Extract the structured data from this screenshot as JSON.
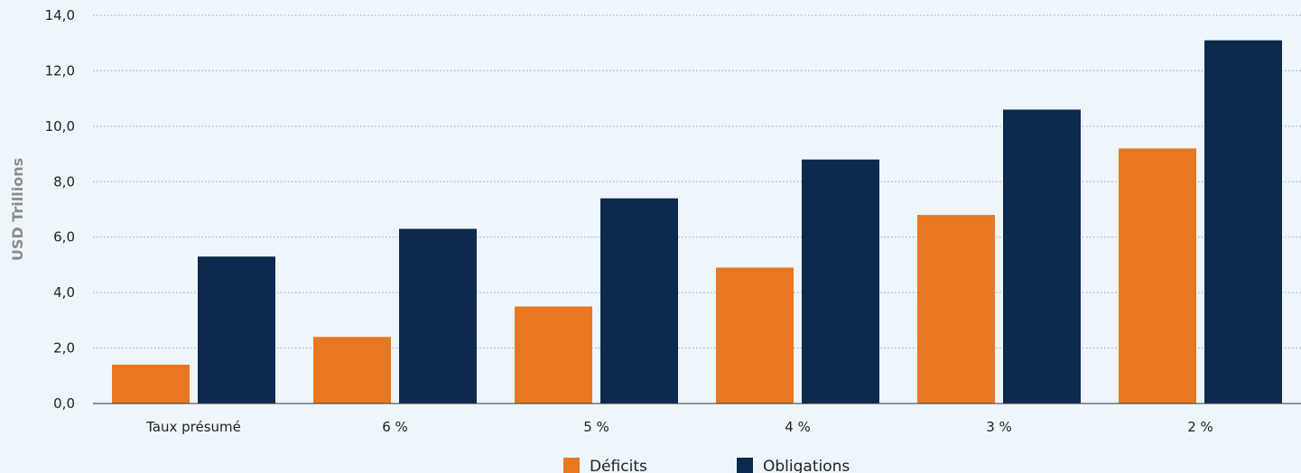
{
  "chart_data": {
    "type": "bar",
    "ylabel": "USD Trillions",
    "ylim": [
      0,
      14
    ],
    "yticks": [
      "0,0",
      "2,0",
      "4,0",
      "6,0",
      "8,0",
      "10,0",
      "12,0",
      "14,0"
    ],
    "ytick_values": [
      0,
      2,
      4,
      6,
      8,
      10,
      12,
      14
    ],
    "categories": [
      "Taux présumé",
      "6 %",
      "5 %",
      "4 %",
      "3 %",
      "2 %"
    ],
    "series": [
      {
        "name": "Déficits",
        "color": "#e87722",
        "values": [
          1.4,
          2.4,
          3.5,
          4.9,
          6.8,
          9.2
        ]
      },
      {
        "name": "Obligations",
        "color": "#0d2a4e",
        "values": [
          5.3,
          6.3,
          7.4,
          8.8,
          10.6,
          13.1
        ]
      }
    ],
    "grid": true,
    "legend": "bottom-center"
  }
}
